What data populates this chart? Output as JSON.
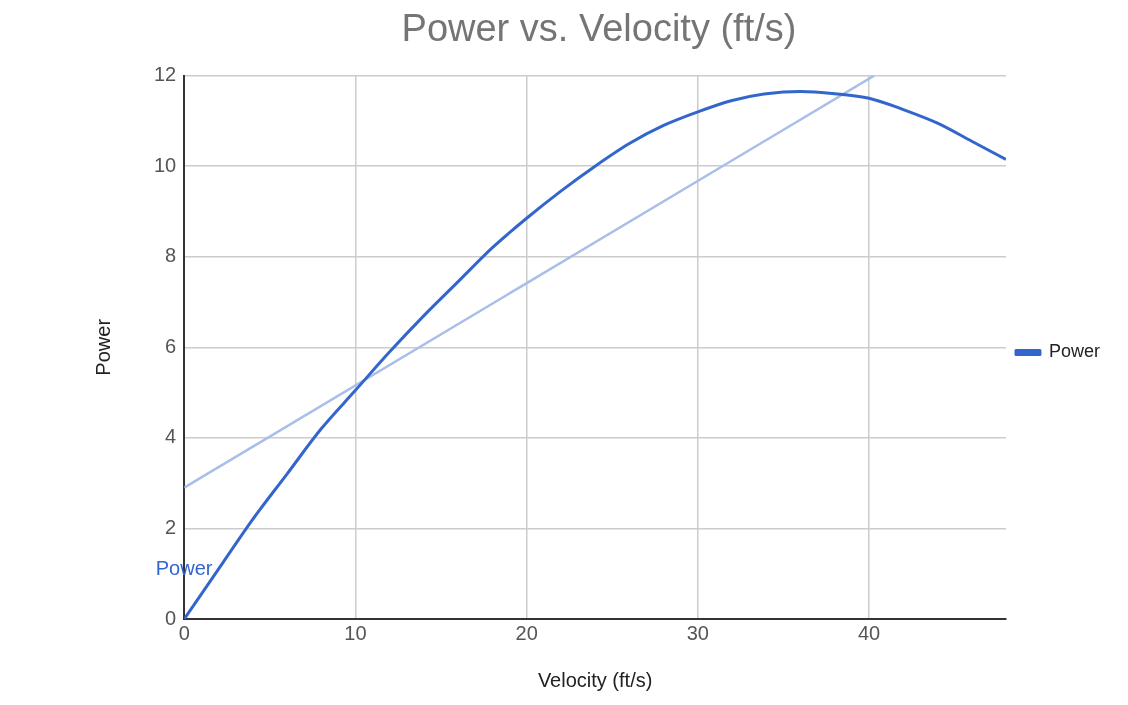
{
  "chart_data": {
    "type": "line",
    "title": "Power vs. Velocity (ft/s)",
    "xlabel": "Velocity (ft/s)",
    "ylabel": "Power",
    "xlim": [
      0,
      48
    ],
    "xticks": [
      0,
      10,
      20,
      30,
      40
    ],
    "ylim": [
      0,
      12
    ],
    "yticks": [
      0,
      2,
      4,
      6,
      8,
      10,
      12
    ],
    "grid": true,
    "legend": "right",
    "marker": "none",
    "series": [
      {
        "name": "Power",
        "color": "#3366cc",
        "x": [
          0,
          2,
          4,
          6,
          8,
          10,
          12,
          14,
          16,
          18,
          20,
          22,
          24,
          26,
          28,
          30,
          32,
          34,
          36,
          38,
          40,
          42,
          44,
          46,
          48
        ],
        "values": [
          0,
          1.1,
          2.2,
          3.2,
          4.2,
          5.05,
          5.9,
          6.7,
          7.45,
          8.2,
          8.85,
          9.45,
          10.0,
          10.5,
          10.9,
          11.2,
          11.45,
          11.6,
          11.65,
          11.6,
          11.5,
          11.25,
          10.95,
          10.55,
          10.15
        ]
      },
      {
        "color": "#a8bfe9",
        "x": [
          0,
          40.3
        ],
        "values": [
          2.9,
          12
        ]
      }
    ]
  }
}
